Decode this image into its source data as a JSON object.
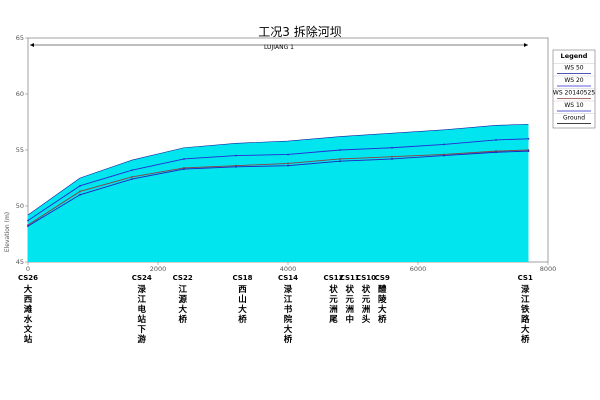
{
  "chart_data": {
    "type": "line",
    "title": "工况3  拆除河坝",
    "river_label": "LUJIANG 1",
    "ylabel": "Elevation (m)",
    "xlim": [
      0,
      8000
    ],
    "ylim": [
      45,
      65
    ],
    "x_ticks": [
      0,
      2000,
      4000,
      6000,
      8000
    ],
    "y_ticks": [
      45,
      50,
      55,
      60,
      65
    ],
    "legend": {
      "title": "Legend",
      "position": "right",
      "entries": [
        "WS 50",
        "WS 20",
        "WS 20140525",
        "WS 10",
        "Ground"
      ]
    },
    "x": [
      0,
      800,
      1600,
      2400,
      3200,
      4000,
      4800,
      5600,
      6400,
      7200,
      7700
    ],
    "series": [
      {
        "name": "WS 50",
        "color": "#1020a0",
        "values": [
          49.2,
          52.5,
          54.1,
          55.2,
          55.6,
          55.8,
          56.2,
          56.5,
          56.8,
          57.2,
          57.3
        ]
      },
      {
        "name": "WS 20",
        "color": "#2a2ad0",
        "values": [
          48.7,
          51.8,
          53.2,
          54.2,
          54.5,
          54.6,
          55.0,
          55.2,
          55.5,
          55.9,
          56.0
        ]
      },
      {
        "name": "WS 20140525",
        "color": "#8a4040",
        "values": [
          48.3,
          51.3,
          52.6,
          53.4,
          53.6,
          53.8,
          54.2,
          54.4,
          54.6,
          54.9,
          55.0
        ]
      },
      {
        "name": "WS 10",
        "color": "#2020c0",
        "values": [
          48.2,
          51.0,
          52.4,
          53.3,
          53.5,
          53.6,
          54.0,
          54.2,
          54.5,
          54.8,
          54.9
        ]
      }
    ],
    "fill_color": "#00e5ee",
    "cross_sections": [
      {
        "id": "CS26",
        "x": 0,
        "name": "大西滩水文站"
      },
      {
        "id": "CS24",
        "x": 1750,
        "name": "渌江电站下游"
      },
      {
        "id": "CS22",
        "x": 2380,
        "name": "江源大桥"
      },
      {
        "id": "CS18",
        "x": 3300,
        "name": "西山大桥"
      },
      {
        "id": "CS14",
        "x": 4000,
        "name": "渌江书院大桥"
      },
      {
        "id": "CS12",
        "x": 4700,
        "name": "状元洲尾"
      },
      {
        "id": "CS11",
        "x": 4950,
        "name": "状元洲中"
      },
      {
        "id": "CS10",
        "x": 5200,
        "name": "状元洲头"
      },
      {
        "id": "CS9",
        "x": 5450,
        "name": "醴陵大桥"
      },
      {
        "id": "CS1",
        "x": 7650,
        "name": "渌江铁路大桥"
      }
    ]
  }
}
